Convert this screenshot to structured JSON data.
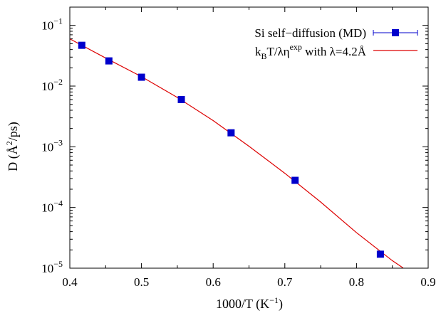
{
  "chart_data": {
    "type": "scatter",
    "xlabel_main": "1000/T (K",
    "xlabel_sup": "−1",
    "xlabel_end": ")",
    "ylabel_main": "D (Å",
    "ylabel_sup": "2",
    "ylabel_end": "/ps)",
    "x_scale": "linear",
    "y_scale": "log",
    "xlim": [
      0.4,
      0.9
    ],
    "ylim": [
      1e-05,
      0.2
    ],
    "x_ticks": [
      0.4,
      0.5,
      0.6,
      0.7,
      0.8,
      0.9
    ],
    "x_tick_labels": [
      "0.4",
      "0.5",
      "0.6",
      "0.7",
      "0.8",
      "0.9"
    ],
    "y_tick_exponents": [
      -5,
      -4,
      -3,
      -2,
      -1
    ],
    "y_tick_base": "10",
    "y_tick_labels": [
      "−5",
      "−4",
      "−3",
      "−2",
      "−1"
    ],
    "grid": false,
    "legend_position": "top-right",
    "series": [
      {
        "name": "Si self−diffusion (MD)",
        "kind": "points-with-errorbars",
        "color": "#0000cc",
        "marker": "square",
        "x": [
          0.4167,
          0.4545,
          0.5,
          0.5556,
          0.625,
          0.7143,
          0.8333
        ],
        "y": [
          0.047,
          0.026,
          0.014,
          0.006,
          0.0017,
          0.00028,
          1.7e-05
        ]
      },
      {
        "name_parts": {
          "k": "k",
          "B": "B",
          "mid": "T/λη",
          "exp": "exp",
          "rest": " with λ=4.2Å"
        },
        "kind": "line",
        "color": "#dd0000",
        "x": [
          0.4,
          0.45,
          0.5,
          0.55,
          0.6,
          0.65,
          0.7,
          0.75,
          0.8,
          0.85,
          0.865
        ],
        "y": [
          0.06,
          0.029,
          0.0143,
          0.0065,
          0.0027,
          0.00102,
          0.000366,
          0.000123,
          3.85e-05,
          1.33e-05,
          1.01e-05
        ]
      }
    ]
  }
}
